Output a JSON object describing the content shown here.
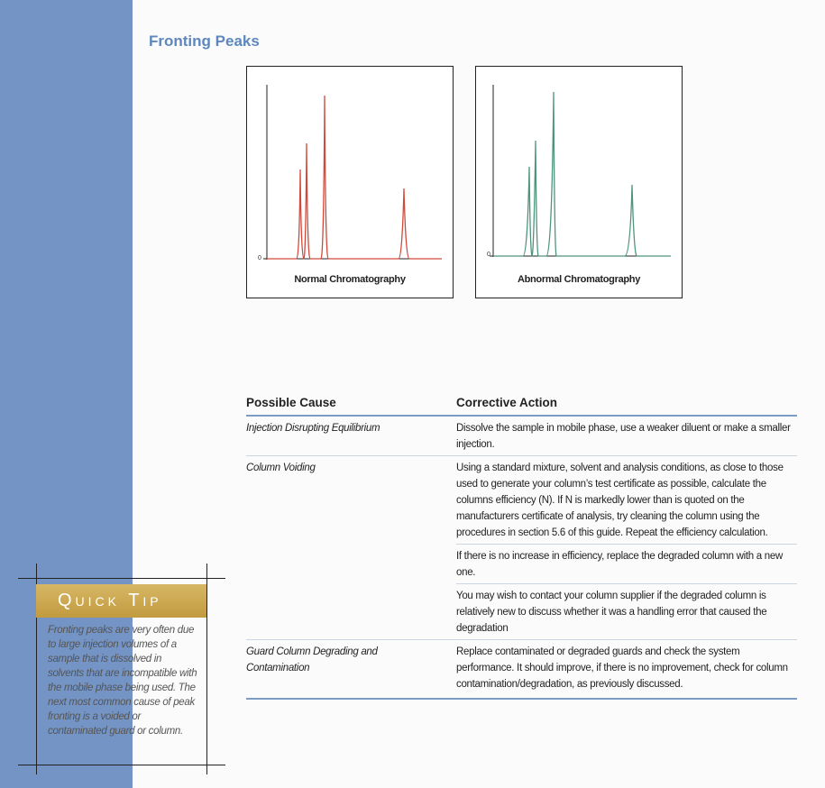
{
  "header": {
    "title": "Fronting Peaks"
  },
  "figures": [
    {
      "axis_label": "0",
      "caption": "Normal Chromatography"
    },
    {
      "axis_label": "0",
      "caption": "Abnormal Chromatography"
    }
  ],
  "table": {
    "columns": [
      "Possible Cause",
      "Corrective Action"
    ],
    "rows": [
      {
        "cause": "Injection Disrupting Equilibrium",
        "actions": [
          "Dissolve the sample in mobile phase, use a weaker diluent or make a smaller injection."
        ]
      },
      {
        "cause": "Column Voiding",
        "actions": [
          "Using a standard mixture, solvent and analysis conditions, as close to those used to generate your column’s test certificate as possible, calculate the columns efficiency (N). If N is markedly lower than is quoted on the manufacturers certificate of analysis, try cleaning the column using the procedures in section 5.6 of this guide. Repeat the efficiency calculation.",
          "If there is no increase in efficiency, replace the degraded column with a new one.",
          "You may wish to contact your column supplier if the degraded column is relatively new to discuss whether it was a handling error that caused the degradation"
        ]
      },
      {
        "cause": "Guard Column Degrading and Contamination",
        "actions": [
          "Replace contaminated or degraded guards and check the system performance. It should improve, if there is no improvement, check for column contamination/degradation, as previously discussed."
        ]
      }
    ]
  },
  "quick_tip": {
    "title": "Quick Tip",
    "text": "Fronting peaks are very often due to large injection volumes of a sample that is dissolved in solvents that are incompatible with the mobile phase being used. The next most common cause of peak fronting is a voided or contaminated guard or column."
  }
}
